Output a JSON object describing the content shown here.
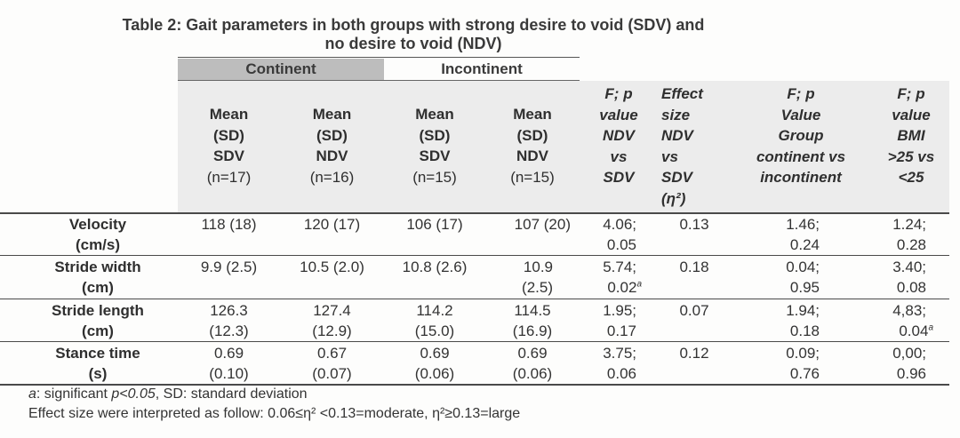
{
  "title_line1": "Table 2: Gait parameters in both groups with strong desire to void (SDV) and",
  "title_line2": "no desire to void (NDV)",
  "groups": {
    "continent": "Continent",
    "incontinent": "Incontinent"
  },
  "headers": [
    [
      "Mean",
      "(SD)",
      "SDV",
      "(n=17)"
    ],
    [
      "Mean",
      "(SD)",
      "NDV",
      "(n=16)"
    ],
    [
      "Mean",
      "(SD)",
      "SDV",
      "(n=15)"
    ],
    [
      "Mean",
      "(SD)",
      "NDV",
      "(n=15)"
    ],
    [
      "F; p",
      "value",
      "NDV",
      "vs",
      "SDV"
    ],
    [
      "Effect",
      "size",
      "NDV",
      "vs",
      "SDV",
      "(η²)"
    ],
    [
      "F; p",
      "Value",
      "Group",
      "continent vs",
      "incontinent"
    ],
    [
      "F; p",
      "value",
      "BMI",
      ">25 vs",
      "<25"
    ]
  ],
  "rows": [
    {
      "label": [
        "Velocity",
        "(cm/s)"
      ],
      "cont_sdv": [
        "118 (18)",
        ""
      ],
      "cont_ndv": [
        "120 (17)",
        ""
      ],
      "inc_sdv": [
        "106 (17)",
        ""
      ],
      "inc_ndv": [
        "107 (20)",
        ""
      ],
      "f_ndv_sdv": [
        "4.06;",
        "0.05"
      ],
      "effect": "0.13",
      "f_group": [
        "1.46;",
        "0.24"
      ],
      "f_bmi": [
        "1.24;",
        "0.28"
      ]
    },
    {
      "label": [
        "Stride width",
        "(cm)"
      ],
      "cont_sdv": [
        "9.9 (2.5)",
        ""
      ],
      "cont_ndv": [
        "10.5 (2.0)",
        ""
      ],
      "inc_sdv": [
        "10.8 (2.6)",
        ""
      ],
      "inc_ndv": [
        "10.9",
        "(2.5)"
      ],
      "f_ndv_sdv": [
        "5.74;",
        "0.02"
      ],
      "effect": "0.18",
      "f_group": [
        "0.04;",
        "0.95"
      ],
      "f_bmi": [
        "3.40;",
        "0.08"
      ]
    },
    {
      "label": [
        "Stride length",
        "(cm)"
      ],
      "cont_sdv": [
        "126.3",
        "(12.3)"
      ],
      "cont_ndv": [
        "127.4",
        "(12.9)"
      ],
      "inc_sdv": [
        "114.2",
        "(15.0)"
      ],
      "inc_ndv": [
        "114.5",
        "(16.9)"
      ],
      "f_ndv_sdv": [
        "1.95;",
        "0.17"
      ],
      "effect": "0.07",
      "f_group": [
        "1.94;",
        "0.18"
      ],
      "f_bmi": [
        "4,83;",
        "0.04"
      ]
    },
    {
      "label": [
        "Stance time",
        "(s)"
      ],
      "cont_sdv": [
        "0.69",
        "(0.10)"
      ],
      "cont_ndv": [
        "0.67",
        "(0.07)"
      ],
      "inc_sdv": [
        "0.69",
        "(0.06)"
      ],
      "inc_ndv": [
        "0.69",
        "(0.06)"
      ],
      "f_ndv_sdv": [
        "3.75;",
        "0.06"
      ],
      "effect": "0.12",
      "f_group": [
        "0.09;",
        "0.76"
      ],
      "f_bmi": [
        "0,00;",
        "0.96"
      ]
    }
  ],
  "sig_marker": "a",
  "footnote1": {
    "a": "a",
    "mid": ": significant ",
    "p": "p<0.05",
    "rest": ", SD: standard deviation"
  },
  "footnote2": "Effect size were interpreted as follow: 0.06≤η² <0.13=moderate, η²≥0.13=large"
}
